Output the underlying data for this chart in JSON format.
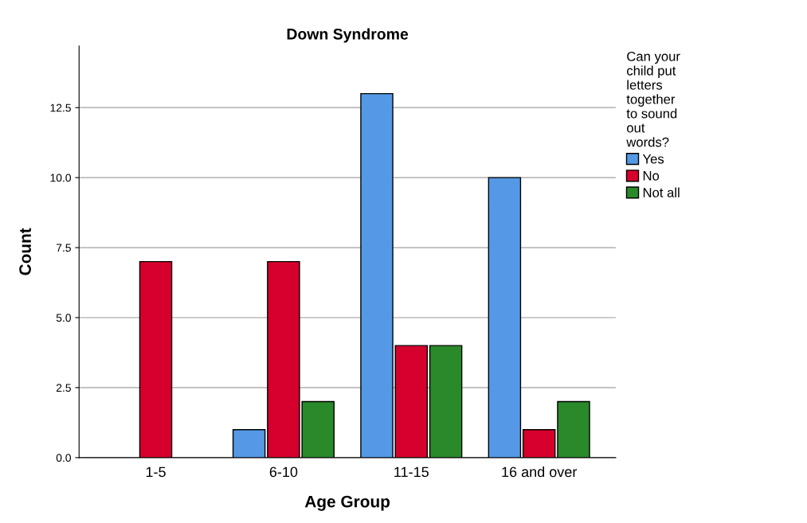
{
  "chart_data": {
    "type": "bar",
    "title": "Down Syndrome",
    "xlabel": "Age Group",
    "ylabel": "Count",
    "legend_title": "Can your\nchild put\nletters\ntogether\nto sound\nout\nwords?",
    "categories": [
      "1-5",
      "6-10",
      "11-15",
      "16 and over"
    ],
    "series": [
      {
        "name": "Yes",
        "color": "#5599e6",
        "values": [
          null,
          1,
          13,
          10
        ]
      },
      {
        "name": "No",
        "color": "#d5002c",
        "values": [
          7,
          7,
          4,
          1
        ]
      },
      {
        "name": "Not all",
        "color": "#2a8a2a",
        "values": [
          null,
          2,
          4,
          2
        ]
      }
    ],
    "ylim": [
      0,
      14.7
    ],
    "yticks": [
      {
        "value": 0,
        "label": "0.0"
      },
      {
        "value": 2.5,
        "label": "2.5"
      },
      {
        "value": 5,
        "label": "5.0"
      },
      {
        "value": 7.5,
        "label": "7.5"
      },
      {
        "value": 10,
        "label": "10.0"
      },
      {
        "value": 12.5,
        "label": "12.5"
      }
    ],
    "grid": "y",
    "legend": "top right"
  }
}
